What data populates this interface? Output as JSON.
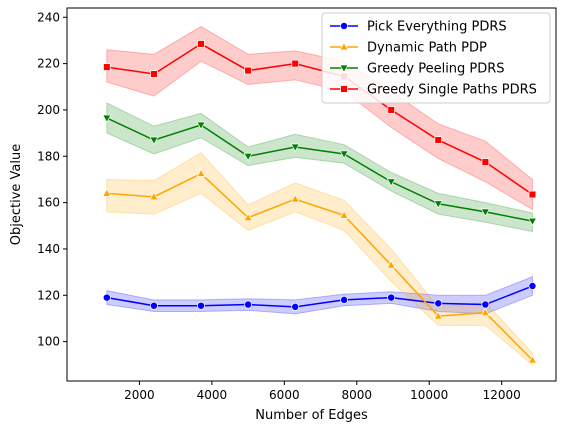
{
  "chart_data": {
    "type": "line",
    "title": "",
    "xlabel": "Number of Edges",
    "ylabel": "Objective Value",
    "xlim": [
      0,
      13500
    ],
    "ylim": [
      83,
      244
    ],
    "xticks": [
      2000,
      4000,
      6000,
      8000,
      10000,
      12000
    ],
    "yticks": [
      100,
      120,
      140,
      160,
      180,
      200,
      220,
      240
    ],
    "grid": false,
    "legend_position": "top-right",
    "x": [
      1100,
      2400,
      3700,
      5000,
      6300,
      7650,
      8950,
      10250,
      11550,
      12850
    ],
    "series": [
      {
        "name": "Pick Everything PDRS",
        "color": "#0000ff",
        "marker": "circle",
        "values": [
          119,
          115.5,
          115.5,
          116,
          115,
          118,
          119,
          116.5,
          116,
          124
        ],
        "lower": [
          116,
          113,
          113,
          113.5,
          112,
          115.5,
          116.5,
          113,
          112,
          120
        ],
        "upper": [
          122,
          118,
          118,
          118.5,
          118,
          120.5,
          121.5,
          120,
          120,
          128
        ]
      },
      {
        "name": "Dynamic Path PDP",
        "color": "#ffa500",
        "marker": "triangle",
        "values": [
          164,
          162.5,
          172.5,
          153.5,
          161.5,
          154.5,
          133,
          111,
          112.5,
          92
        ],
        "lower": [
          156,
          155,
          164,
          148,
          156,
          148,
          126,
          107,
          107,
          90
        ],
        "upper": [
          170,
          169.5,
          181.5,
          159,
          168.5,
          161,
          140,
          115,
          117,
          95
        ]
      },
      {
        "name": "Greedy Peeling PDRS",
        "color": "#008000",
        "marker": "triangle-down",
        "values": [
          196.5,
          187,
          193.5,
          180,
          184,
          181,
          169,
          159.5,
          156,
          152
        ],
        "lower": [
          190,
          181,
          188,
          176,
          179.5,
          177,
          165,
          155,
          151.5,
          147.5
        ],
        "upper": [
          203,
          193,
          198.5,
          184,
          189.5,
          185,
          173,
          164,
          160,
          155.5
        ]
      },
      {
        "name": "Greedy Single Paths PDRS",
        "color": "#ff0000",
        "marker": "square",
        "values": [
          218.5,
          215.5,
          228.5,
          217,
          220,
          214.5,
          200,
          187,
          177.5,
          163.5
        ],
        "lower": [
          212,
          206,
          221,
          211,
          213,
          208,
          192.5,
          179,
          169,
          157
        ],
        "upper": [
          226,
          224,
          236,
          224,
          225.5,
          221,
          208,
          194,
          186.5,
          170
        ]
      }
    ]
  }
}
